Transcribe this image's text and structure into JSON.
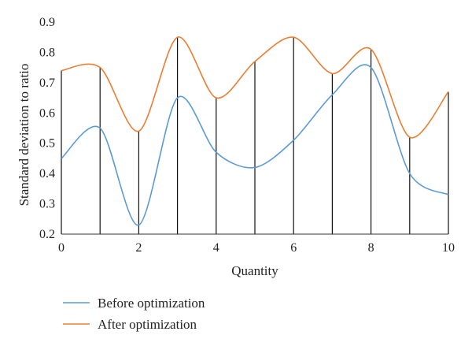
{
  "chart_data": {
    "type": "line",
    "xlabel": "Quantity",
    "ylabel": "Standard deviation to ratio",
    "xlim": [
      0,
      10
    ],
    "ylim": [
      0.2,
      0.9
    ],
    "x_ticks": [
      "0",
      "2",
      "4",
      "6",
      "8",
      "10"
    ],
    "y_ticks": [
      "0.2",
      "0.3",
      "0.4",
      "0.5",
      "0.6",
      "0.7",
      "0.8",
      "0.9"
    ],
    "grid": false,
    "legend_position": "bottom-left",
    "drop_lines": true,
    "series": [
      {
        "name": "Before optimization",
        "color": "#5b9bd5",
        "x": [
          0,
          1,
          2,
          3,
          4,
          5,
          6,
          7,
          8,
          9,
          10
        ],
        "y": [
          0.45,
          0.55,
          0.23,
          0.65,
          0.47,
          0.42,
          0.51,
          0.66,
          0.75,
          0.4,
          0.33
        ]
      },
      {
        "name": "After optimization",
        "color": "#ed7d31",
        "x": [
          0,
          1,
          2,
          3,
          4,
          5,
          6,
          7,
          8,
          9,
          10
        ],
        "y": [
          0.74,
          0.75,
          0.54,
          0.85,
          0.65,
          0.77,
          0.85,
          0.73,
          0.81,
          0.52,
          0.67
        ]
      }
    ]
  }
}
